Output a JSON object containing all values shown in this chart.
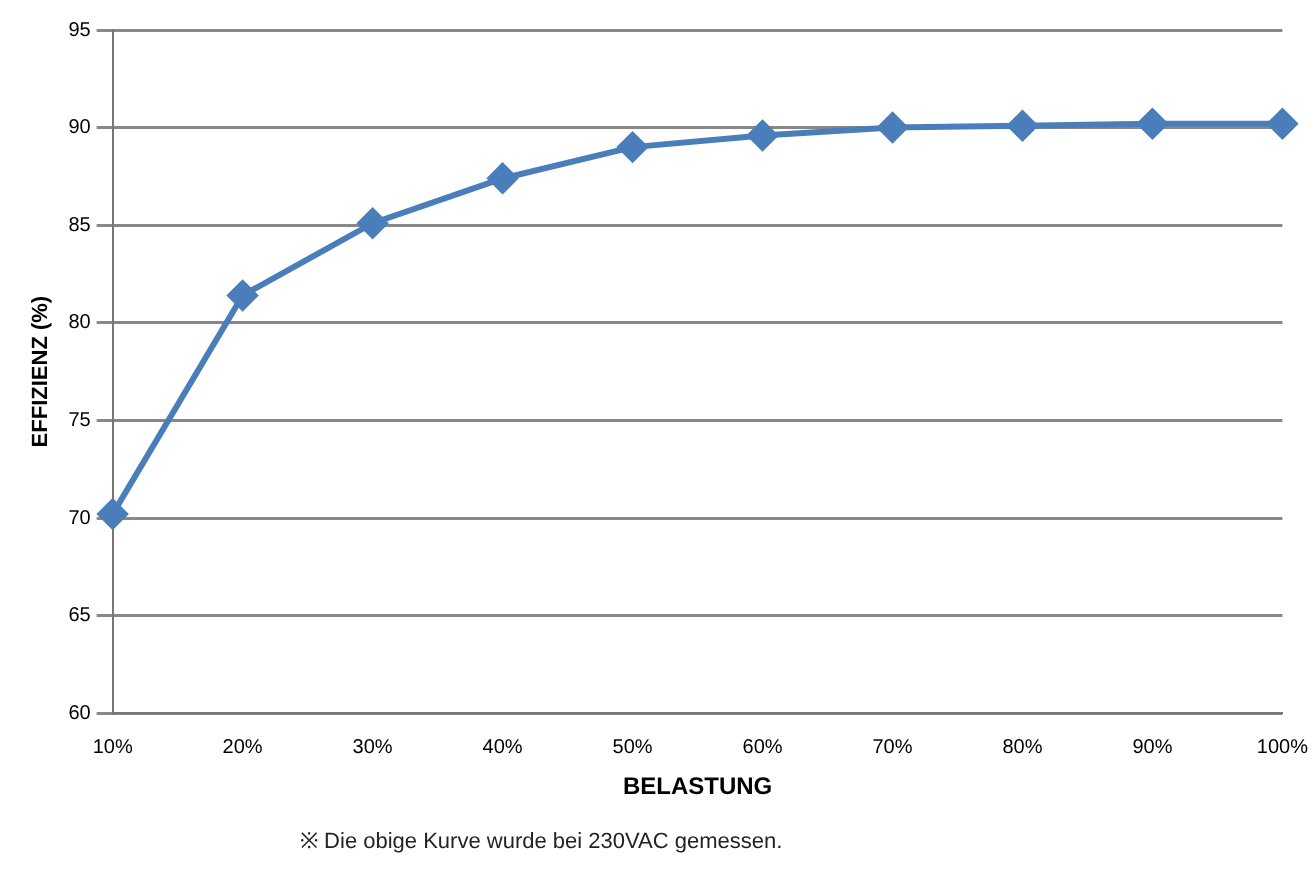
{
  "chart_data": {
    "type": "line",
    "xlabel": "BELASTUNG",
    "ylabel": "EFFIZIENZ (%)",
    "categories": [
      "10%",
      "20%",
      "30%",
      "40%",
      "50%",
      "60%",
      "70%",
      "80%",
      "90%",
      "100%"
    ],
    "series": [
      {
        "color": "#4a7ebb",
        "values": [
          70.2,
          81.4,
          85.1,
          87.4,
          89.0,
          89.6,
          90.0,
          90.1,
          90.2,
          90.2
        ]
      }
    ],
    "ylim": [
      60,
      95
    ],
    "yticks": [
      60,
      65,
      70,
      75,
      80,
      85,
      90,
      95
    ],
    "grid": "y",
    "legend": false,
    "marker": "diamond",
    "line_style": "solid",
    "annotations": [
      "※ Die obige Kurve wurde bei 230VAC gemessen."
    ]
  }
}
